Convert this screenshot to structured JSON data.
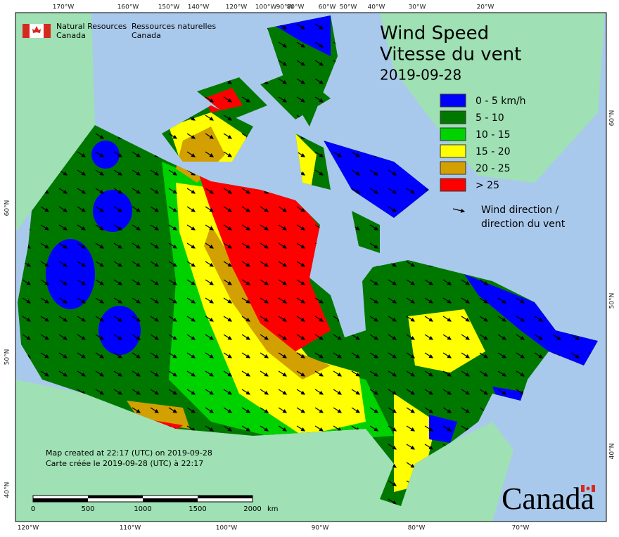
{
  "header": {
    "agency_en": "Natural Resources",
    "agency_en_2": "Canada",
    "agency_fr": "Ressources naturelles",
    "agency_fr_2": "Canada"
  },
  "legend": {
    "title_en": "Wind Speed",
    "title_fr": "Vitesse du vent",
    "date": "2019-09-28",
    "classes": [
      {
        "label": "0 - 5 km/h",
        "color": "#0000ff"
      },
      {
        "label": "5 - 10",
        "color": "#007800"
      },
      {
        "label": "10 - 15",
        "color": "#00d200"
      },
      {
        "label": "15 - 20",
        "color": "#ffff00"
      },
      {
        "label": "20 - 25",
        "color": "#d2a000"
      },
      {
        "label": "> 25",
        "color": "#ff0000"
      }
    ],
    "arrow_label": [
      "Wind direction /",
      "direction du vent"
    ]
  },
  "notes": [
    "Map created at 22:17 (UTC) on 2019-09-28",
    "Carte créée le 2019-09-28 (UTC) à 22:17"
  ],
  "scale": {
    "labels": [
      "0",
      "500",
      "1000",
      "1500",
      "2000"
    ],
    "unit": "km"
  },
  "graticule": {
    "top": [
      "170°W",
      "160°W",
      "150°W",
      "140°W",
      "120°W",
      "100°W",
      "90°W",
      "80°W",
      "60°W",
      "50°W",
      "40°W",
      "30°W",
      "20°W"
    ],
    "bottom": [
      "120°W",
      "110°W",
      "100°W",
      "90°W",
      "80°W",
      "70°W"
    ],
    "left": [
      "60°N",
      "50°N",
      "40°N"
    ],
    "right": [
      "60°N",
      "50°N",
      "40°N"
    ]
  },
  "wordmark": "Canada"
}
